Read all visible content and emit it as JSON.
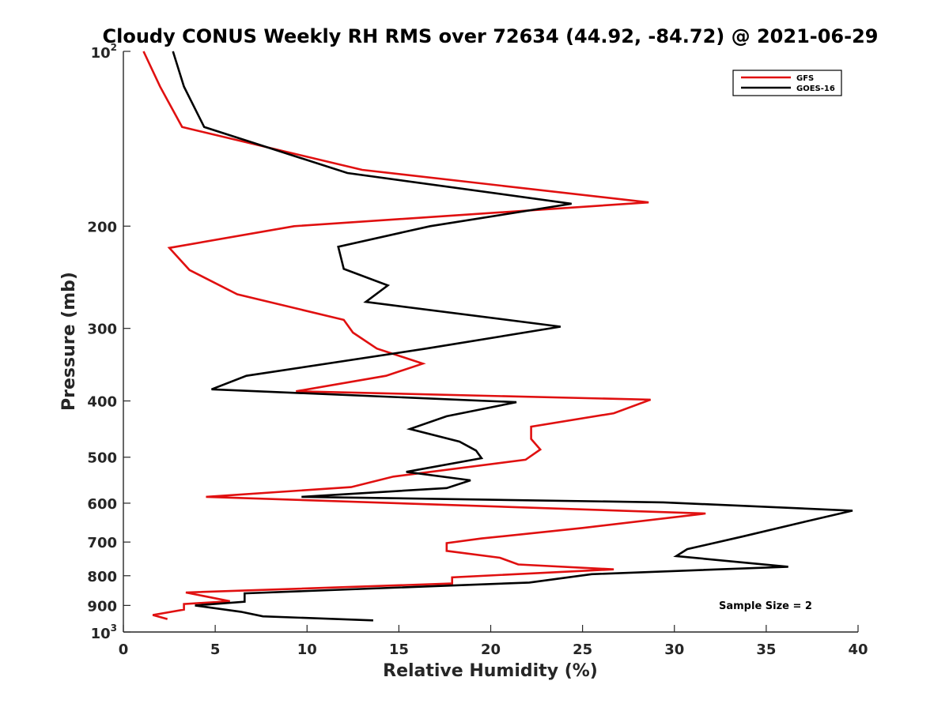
{
  "chart_data": {
    "type": "line",
    "title": "Cloudy CONUS Weekly RH RMS over 72634 (44.92, -84.72) @ 2021-06-29",
    "xlabel": "Relative Humidity (%)",
    "ylabel": "Pressure (mb)",
    "xlim": [
      0,
      40
    ],
    "ylim": [
      100,
      1000
    ],
    "y_scale": "log",
    "y_reversed": true,
    "x_ticks": [
      0,
      5,
      10,
      15,
      20,
      25,
      30,
      35,
      40
    ],
    "y_ticks": [
      {
        "value": 100,
        "base": "10",
        "exp": "2"
      },
      {
        "value": 200,
        "label": "200"
      },
      {
        "value": 300,
        "label": "300"
      },
      {
        "value": 400,
        "label": "400"
      },
      {
        "value": 500,
        "label": "500"
      },
      {
        "value": 600,
        "label": "600"
      },
      {
        "value": 700,
        "label": "700"
      },
      {
        "value": 800,
        "label": "800"
      },
      {
        "value": 900,
        "label": "900"
      },
      {
        "value": 1000,
        "base": "10",
        "exp": "3"
      }
    ],
    "grid": false,
    "legend_position": "top-right",
    "annotation": "Sample Size = 2",
    "series": [
      {
        "name": "GFS",
        "color": "#e01010",
        "points": [
          [
            1.1,
            100
          ],
          [
            2.0,
            115
          ],
          [
            3.2,
            135
          ],
          [
            13.0,
            160
          ],
          [
            28.6,
            182
          ],
          [
            9.3,
            200
          ],
          [
            2.5,
            218
          ],
          [
            3.6,
            238
          ],
          [
            6.2,
            262
          ],
          [
            12.0,
            290
          ],
          [
            12.5,
            305
          ],
          [
            13.8,
            325
          ],
          [
            16.3,
            345
          ],
          [
            14.3,
            362
          ],
          [
            9.4,
            385
          ],
          [
            28.7,
            398
          ],
          [
            26.7,
            420
          ],
          [
            22.2,
            443
          ],
          [
            22.2,
            465
          ],
          [
            22.7,
            485
          ],
          [
            21.9,
            505
          ],
          [
            14.7,
            540
          ],
          [
            12.4,
            563
          ],
          [
            4.5,
            585
          ],
          [
            31.7,
            625
          ],
          [
            25.0,
            662
          ],
          [
            19.5,
            690
          ],
          [
            17.6,
            703
          ],
          [
            17.6,
            725
          ],
          [
            20.5,
            745
          ],
          [
            21.5,
            765
          ],
          [
            26.7,
            780
          ],
          [
            17.9,
            805
          ],
          [
            17.9,
            825
          ],
          [
            3.4,
            855
          ],
          [
            5.8,
            885
          ],
          [
            3.3,
            895
          ],
          [
            3.3,
            915
          ],
          [
            1.6,
            935
          ],
          [
            2.4,
            950
          ]
        ]
      },
      {
        "name": "GOES-16",
        "color": "#000000",
        "points": [
          [
            2.7,
            100
          ],
          [
            3.3,
            115
          ],
          [
            4.4,
            135
          ],
          [
            12.2,
            162
          ],
          [
            24.4,
            183
          ],
          [
            16.7,
            200
          ],
          [
            11.7,
            217
          ],
          [
            12.0,
            237
          ],
          [
            14.4,
            253
          ],
          [
            13.2,
            270
          ],
          [
            23.8,
            298
          ],
          [
            16.5,
            325
          ],
          [
            6.7,
            362
          ],
          [
            4.8,
            382
          ],
          [
            21.4,
            402
          ],
          [
            17.6,
            425
          ],
          [
            15.6,
            447
          ],
          [
            18.3,
            470
          ],
          [
            19.2,
            487
          ],
          [
            19.5,
            502
          ],
          [
            15.4,
            530
          ],
          [
            18.9,
            548
          ],
          [
            17.6,
            565
          ],
          [
            9.7,
            585
          ],
          [
            29.4,
            598
          ],
          [
            39.7,
            618
          ],
          [
            37.0,
            647
          ],
          [
            33.7,
            685
          ],
          [
            30.7,
            720
          ],
          [
            30.1,
            740
          ],
          [
            36.2,
            772
          ],
          [
            25.5,
            795
          ],
          [
            22.1,
            822
          ],
          [
            6.6,
            858
          ],
          [
            6.6,
            887
          ],
          [
            3.9,
            900
          ],
          [
            6.4,
            923
          ],
          [
            7.6,
            940
          ],
          [
            13.6,
            955
          ]
        ]
      }
    ]
  }
}
